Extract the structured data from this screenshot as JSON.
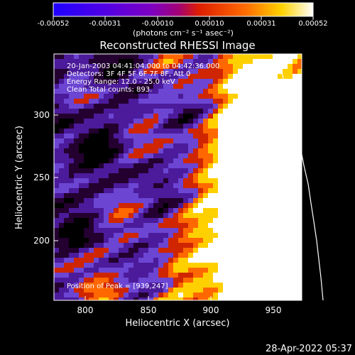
{
  "colorbar": {
    "tick_labels": [
      "-0.00052",
      "-0.00031",
      "-0.00010",
      "0.00010",
      "0.00031",
      "0.00052"
    ],
    "unit_label": "(photons cm⁻² s⁻¹ asec⁻²)",
    "colors": [
      "#1f00ff",
      "#5b00d8",
      "#8d00b2",
      "#b8004d",
      "#ff5a00",
      "#ffd400",
      "#ffffff"
    ]
  },
  "image": {
    "title": "Reconstructed RHESSI Image",
    "info_lines": [
      "20-Jan-2003 04:41:04.000 to 04:42:36.000",
      "Detectors: 3F 4F 5F 6F 7F 8F, Att 0",
      "Energy Range: 12.0 - 25.0 keV",
      "Clean    Total counts: 893."
    ],
    "peak_label": "Position of Peak = [939,247]",
    "x_label": "Heliocentric X (arcsec)",
    "y_label": "Heliocentric Y (arcsec)",
    "x_ticks": [
      "800",
      "850",
      "900",
      "950"
    ],
    "y_ticks": [
      "200",
      "250",
      "300"
    ],
    "limb_label": "",
    "background": "#000000",
    "heatmap_palette": [
      "#000000",
      "#2a0035",
      "#4a1a9a",
      "#6b3ccd",
      "#d72b00",
      "#ff6a00",
      "#ffd000",
      "#ffffff"
    ],
    "icon_name": "rhessi-heatmap"
  },
  "footer": {
    "timestamp": "28-Apr-2022 05:37"
  }
}
